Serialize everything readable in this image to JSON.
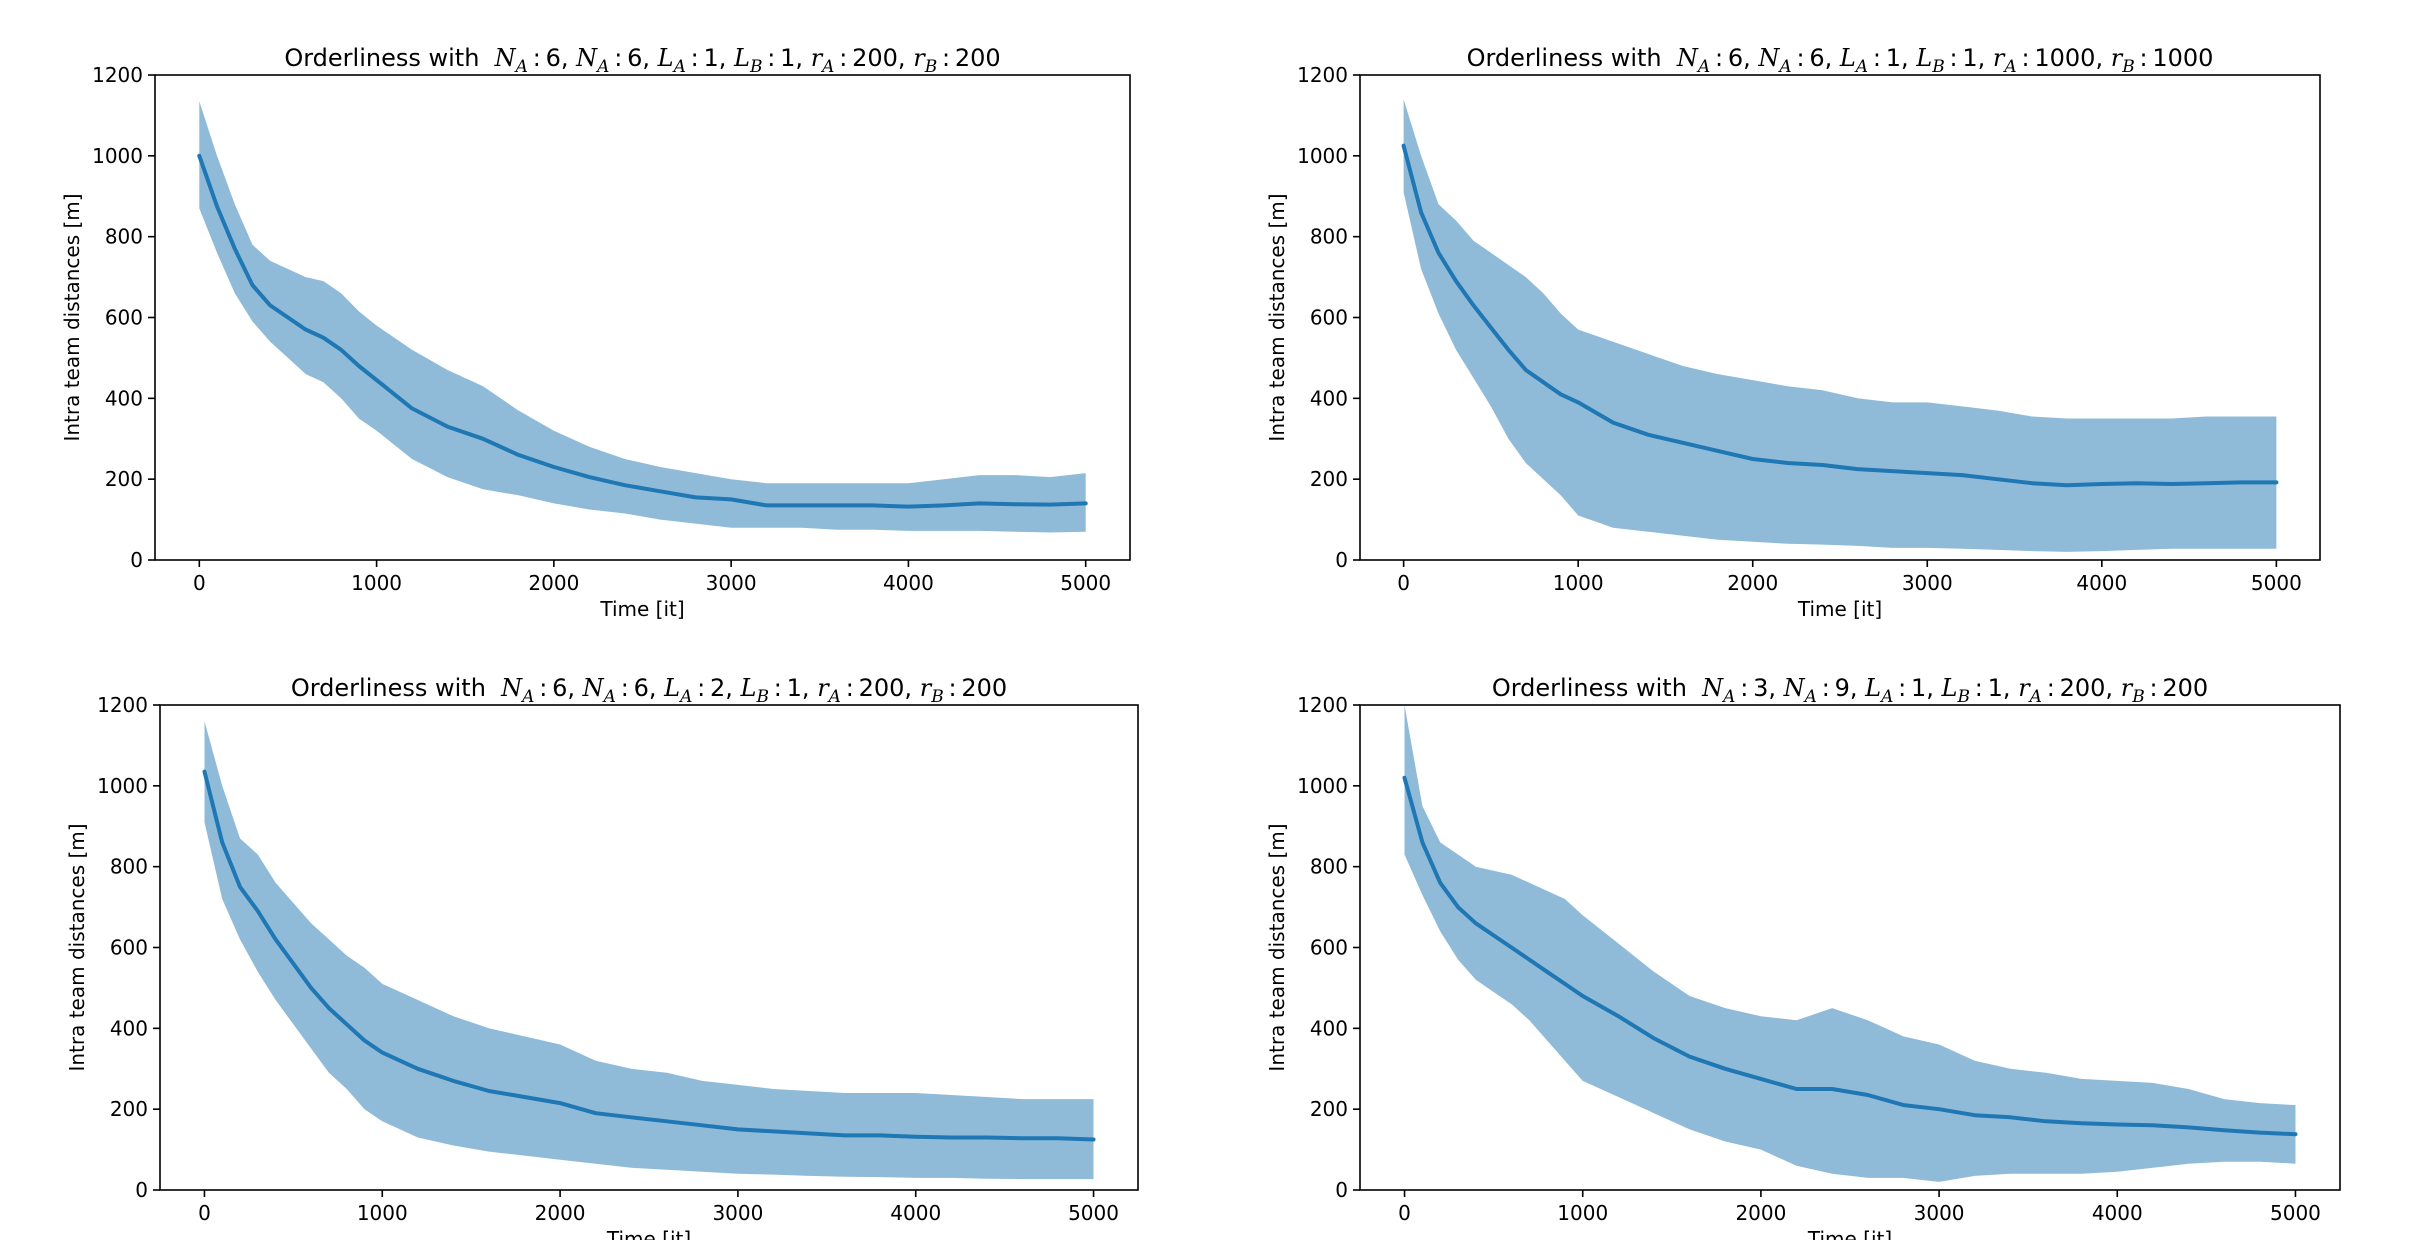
{
  "figure": {
    "background": "#ffffff"
  },
  "style": {
    "line_color": "#1f77b4",
    "band_color": "#1f77b4",
    "band_opacity": 0.5
  },
  "chart_data": [
    {
      "type": "area",
      "title_prefix": "Orderliness with",
      "title_math": [
        {
          "base": "N",
          "sub": "A",
          "val": "6"
        },
        {
          "base": "N",
          "sub": "A",
          "val": "6"
        },
        {
          "base": "L",
          "sub": "A",
          "val": "1"
        },
        {
          "base": "L",
          "sub": "B",
          "val": "1"
        },
        {
          "base": "r",
          "sub": "A",
          "val": "200"
        },
        {
          "base": "r",
          "sub": "B",
          "val": "200"
        }
      ],
      "xlabel": "Time [it]",
      "ylabel": "Intra team distances [m]",
      "xlim": [
        -250,
        5250
      ],
      "ylim": [
        0,
        1200
      ],
      "xticks": [
        0,
        1000,
        2000,
        3000,
        4000,
        5000
      ],
      "yticks": [
        0,
        200,
        400,
        600,
        800,
        1000,
        1200
      ],
      "grid": false,
      "series": [
        {
          "x": [
            0,
            100,
            200,
            300,
            400,
            500,
            600,
            700,
            800,
            900,
            1000,
            1200,
            1400,
            1600,
            1800,
            2000,
            2200,
            2400,
            2600,
            2800,
            3000,
            3200,
            3400,
            3600,
            3800,
            4000,
            4200,
            4400,
            4600,
            4800,
            5000
          ],
          "mean": [
            1000,
            875,
            770,
            680,
            630,
            600,
            570,
            550,
            520,
            480,
            445,
            375,
            330,
            300,
            260,
            230,
            205,
            185,
            170,
            155,
            150,
            135,
            135,
            135,
            135,
            132,
            135,
            140,
            138,
            137,
            140
          ],
          "upper": [
            1135,
            1000,
            880,
            780,
            740,
            720,
            700,
            690,
            660,
            615,
            580,
            520,
            470,
            430,
            370,
            320,
            280,
            250,
            230,
            215,
            200,
            190,
            190,
            190,
            190,
            190,
            200,
            210,
            210,
            205,
            215
          ],
          "lower": [
            870,
            760,
            660,
            590,
            540,
            500,
            460,
            440,
            400,
            350,
            320,
            250,
            205,
            175,
            160,
            140,
            125,
            115,
            100,
            90,
            80,
            80,
            80,
            75,
            75,
            72,
            72,
            72,
            70,
            68,
            70
          ]
        }
      ]
    },
    {
      "type": "area",
      "title_prefix": "Orderliness with",
      "title_math": [
        {
          "base": "N",
          "sub": "A",
          "val": "6"
        },
        {
          "base": "N",
          "sub": "A",
          "val": "6"
        },
        {
          "base": "L",
          "sub": "A",
          "val": "1"
        },
        {
          "base": "L",
          "sub": "B",
          "val": "1"
        },
        {
          "base": "r",
          "sub": "A",
          "val": "1000"
        },
        {
          "base": "r",
          "sub": "B",
          "val": "1000"
        }
      ],
      "xlabel": "Time [it]",
      "ylabel": "Intra team distances [m]",
      "xlim": [
        -250,
        5250
      ],
      "ylim": [
        0,
        1200
      ],
      "xticks": [
        0,
        1000,
        2000,
        3000,
        4000,
        5000
      ],
      "yticks": [
        0,
        200,
        400,
        600,
        800,
        1000,
        1200
      ],
      "grid": false,
      "series": [
        {
          "x": [
            0,
            100,
            200,
            300,
            400,
            500,
            600,
            700,
            800,
            900,
            1000,
            1200,
            1400,
            1600,
            1800,
            2000,
            2200,
            2400,
            2600,
            2800,
            3000,
            3200,
            3400,
            3600,
            3800,
            4000,
            4200,
            4400,
            4600,
            4800,
            5000
          ],
          "mean": [
            1025,
            860,
            760,
            690,
            630,
            575,
            520,
            470,
            440,
            410,
            390,
            340,
            310,
            290,
            270,
            250,
            240,
            235,
            225,
            220,
            215,
            210,
            200,
            190,
            185,
            188,
            190,
            188,
            190,
            192,
            192
          ],
          "upper": [
            1140,
            1000,
            880,
            840,
            790,
            760,
            730,
            700,
            660,
            610,
            570,
            540,
            510,
            480,
            460,
            445,
            430,
            420,
            400,
            390,
            390,
            380,
            370,
            355,
            350,
            350,
            350,
            350,
            355,
            355,
            355
          ],
          "lower": [
            910,
            720,
            610,
            520,
            450,
            380,
            300,
            240,
            200,
            160,
            110,
            80,
            70,
            60,
            50,
            45,
            40,
            38,
            35,
            30,
            30,
            28,
            25,
            22,
            20,
            22,
            25,
            28,
            28,
            28,
            28
          ]
        }
      ]
    },
    {
      "type": "area",
      "title_prefix": "Orderliness with",
      "title_math": [
        {
          "base": "N",
          "sub": "A",
          "val": "6"
        },
        {
          "base": "N",
          "sub": "A",
          "val": "6"
        },
        {
          "base": "L",
          "sub": "A",
          "val": "2"
        },
        {
          "base": "L",
          "sub": "B",
          "val": "1"
        },
        {
          "base": "r",
          "sub": "A",
          "val": "200"
        },
        {
          "base": "r",
          "sub": "B",
          "val": "200"
        }
      ],
      "xlabel": "Time [it]",
      "ylabel": "Intra team distances [m]",
      "xlim": [
        -250,
        5250
      ],
      "ylim": [
        0,
        1200
      ],
      "xticks": [
        0,
        1000,
        2000,
        3000,
        4000,
        5000
      ],
      "yticks": [
        0,
        200,
        400,
        600,
        800,
        1000,
        1200
      ],
      "grid": false,
      "series": [
        {
          "x": [
            0,
            100,
            200,
            300,
            400,
            500,
            600,
            700,
            800,
            900,
            1000,
            1200,
            1400,
            1600,
            1800,
            2000,
            2200,
            2400,
            2600,
            2800,
            3000,
            3200,
            3400,
            3600,
            3800,
            4000,
            4200,
            4400,
            4600,
            4800,
            5000
          ],
          "mean": [
            1035,
            860,
            750,
            690,
            620,
            560,
            500,
            450,
            410,
            370,
            340,
            300,
            270,
            245,
            230,
            215,
            190,
            180,
            170,
            160,
            150,
            145,
            140,
            135,
            135,
            132,
            130,
            130,
            128,
            128,
            125
          ],
          "upper": [
            1160,
            1000,
            870,
            830,
            760,
            710,
            660,
            620,
            580,
            550,
            510,
            470,
            430,
            400,
            380,
            360,
            320,
            300,
            290,
            270,
            260,
            250,
            245,
            240,
            240,
            240,
            235,
            230,
            225,
            225,
            225
          ],
          "lower": [
            910,
            720,
            620,
            540,
            470,
            410,
            350,
            290,
            250,
            200,
            170,
            130,
            110,
            95,
            85,
            75,
            65,
            55,
            50,
            45,
            40,
            38,
            35,
            33,
            32,
            30,
            30,
            28,
            27,
            27,
            27
          ]
        }
      ]
    },
    {
      "type": "area",
      "title_prefix": "Orderliness with",
      "title_math": [
        {
          "base": "N",
          "sub": "A",
          "val": "3"
        },
        {
          "base": "N",
          "sub": "A",
          "val": "9"
        },
        {
          "base": "L",
          "sub": "A",
          "val": "1"
        },
        {
          "base": "L",
          "sub": "B",
          "val": "1"
        },
        {
          "base": "r",
          "sub": "A",
          "val": "200"
        },
        {
          "base": "r",
          "sub": "B",
          "val": "200"
        }
      ],
      "xlabel": "Time [it]",
      "ylabel": "Intra team distances [m]",
      "xlim": [
        -250,
        5250
      ],
      "ylim": [
        0,
        1200
      ],
      "xticks": [
        0,
        1000,
        2000,
        3000,
        4000,
        5000
      ],
      "yticks": [
        0,
        200,
        400,
        600,
        800,
        1000,
        1200
      ],
      "grid": false,
      "series": [
        {
          "x": [
            0,
            100,
            200,
            300,
            400,
            500,
            600,
            700,
            800,
            900,
            1000,
            1200,
            1400,
            1600,
            1800,
            2000,
            2200,
            2400,
            2600,
            2800,
            3000,
            3200,
            3400,
            3600,
            3800,
            4000,
            4200,
            4400,
            4600,
            4800,
            5000
          ],
          "mean": [
            1020,
            860,
            760,
            700,
            660,
            630,
            600,
            570,
            540,
            510,
            480,
            430,
            375,
            330,
            300,
            275,
            250,
            250,
            235,
            210,
            200,
            185,
            180,
            170,
            165,
            162,
            160,
            155,
            148,
            142,
            138
          ],
          "upper": [
            1200,
            950,
            860,
            830,
            800,
            790,
            780,
            760,
            740,
            720,
            680,
            610,
            540,
            480,
            450,
            430,
            420,
            450,
            420,
            380,
            360,
            320,
            300,
            290,
            275,
            270,
            265,
            250,
            225,
            215,
            210
          ],
          "lower": [
            830,
            730,
            640,
            570,
            520,
            490,
            460,
            420,
            370,
            320,
            270,
            230,
            190,
            150,
            120,
            100,
            60,
            40,
            30,
            30,
            20,
            35,
            40,
            40,
            40,
            45,
            55,
            65,
            70,
            70,
            65
          ]
        }
      ]
    }
  ]
}
